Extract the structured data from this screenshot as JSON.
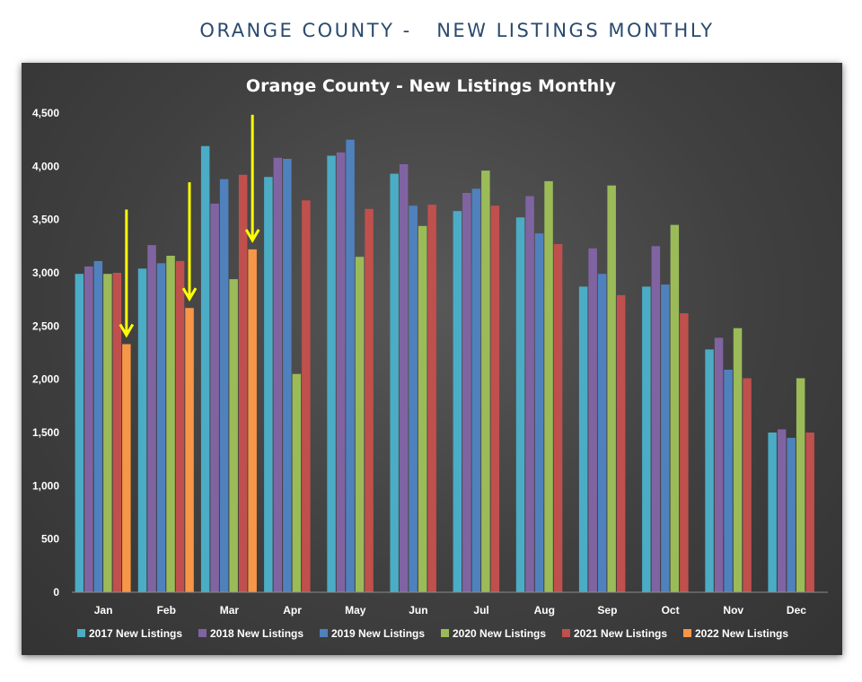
{
  "page": {
    "title": "ORANGE COUNTY -   NEW LISTINGS MONTHLY"
  },
  "chart_data": {
    "type": "bar",
    "title": "Orange County - New Listings Monthly",
    "xlabel": "",
    "ylabel": "",
    "ylim": [
      0,
      4500
    ],
    "yticks": [
      0,
      500,
      1000,
      1500,
      2000,
      2500,
      3000,
      3500,
      4000,
      4500
    ],
    "ytick_labels": [
      "0",
      "500",
      "1,000",
      "1,500",
      "2,000",
      "2,500",
      "3,000",
      "3,500",
      "4,000",
      "4,500"
    ],
    "categories": [
      "Jan",
      "Feb",
      "Mar",
      "Apr",
      "May",
      "Jun",
      "Jul",
      "Aug",
      "Sep",
      "Oct",
      "Nov",
      "Dec"
    ],
    "grid": false,
    "legend_position": "bottom",
    "series": [
      {
        "name": "2017 New Listings",
        "color": "#4bacc6",
        "values": [
          2990,
          3040,
          4190,
          3900,
          4100,
          3930,
          3580,
          3520,
          2870,
          2870,
          2280,
          1500
        ]
      },
      {
        "name": "2018 New Listings",
        "color": "#8064a2",
        "values": [
          3060,
          3260,
          3650,
          4080,
          4130,
          4020,
          3750,
          3720,
          3230,
          3250,
          2390,
          1530
        ]
      },
      {
        "name": "2019 New Listings",
        "color": "#4f81bd",
        "values": [
          3110,
          3090,
          3880,
          4070,
          4250,
          3630,
          3790,
          3370,
          2990,
          2890,
          2090,
          1450
        ]
      },
      {
        "name": "2020 New Listings",
        "color": "#9bbb59",
        "values": [
          2990,
          3160,
          2940,
          2050,
          3150,
          3440,
          3960,
          3860,
          3820,
          3450,
          2480,
          2010
        ]
      },
      {
        "name": "2021 New Listings",
        "color": "#c0504d",
        "values": [
          3000,
          3110,
          3920,
          3680,
          3600,
          3640,
          3630,
          3270,
          2790,
          2620,
          2010,
          1500
        ]
      },
      {
        "name": "2022 New Listings",
        "color": "#f79646",
        "values": [
          2330,
          2670,
          3220,
          null,
          null,
          null,
          null,
          null,
          null,
          null,
          null,
          null
        ]
      }
    ],
    "annotations": [
      {
        "type": "arrow",
        "color": "#ffff00",
        "month": "Jan",
        "points_to": "2022 New Listings"
      },
      {
        "type": "arrow",
        "color": "#ffff00",
        "month": "Feb",
        "points_to": "2022 New Listings"
      },
      {
        "type": "arrow",
        "color": "#ffff00",
        "month": "Mar",
        "points_to": "2022 New Listings"
      }
    ]
  }
}
